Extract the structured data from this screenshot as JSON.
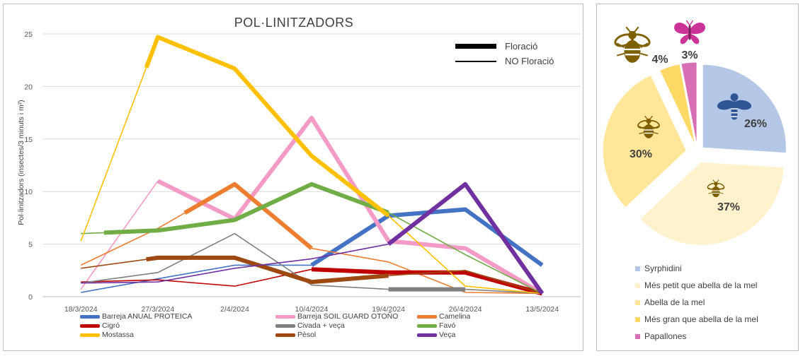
{
  "chart_data": [
    {
      "type": "line",
      "title": "POL·LINITZADORS",
      "xlabel": "",
      "ylabel": "Pol·linitzadors (insectes/3 minuts i m²)",
      "ylim": [
        0,
        25
      ],
      "yticks": [
        "0",
        "5",
        "10",
        "15",
        "20",
        "25"
      ],
      "categories": [
        "18/3/2024",
        "27/3/2024",
        "2/4/2024",
        "10/4/2024",
        "19/4/2024",
        "26/4/2024",
        "13/5/2024"
      ],
      "grid": true,
      "legend_position": "bottom",
      "style_legend": {
        "flowering": "Floració",
        "no_flowering": "NO Floració"
      },
      "series": [
        {
          "name": "Barreja ANUAL PROTEICA",
          "color": "#4472c4",
          "values": [
            0.4,
            1.7,
            3.0,
            3.0,
            7.7,
            8.3,
            3.0
          ],
          "flowering_from": 3
        },
        {
          "name": "Barreja SOIL GUARD OTOÑO",
          "color": "#f49ac6",
          "values": [
            0.7,
            11.0,
            7.4,
            17.0,
            5.3,
            4.6,
            0.3
          ],
          "flowering_from": 1
        },
        {
          "name": "Camelina",
          "color": "#ed7d31",
          "values": [
            3.0,
            6.5,
            10.7,
            4.6,
            3.3,
            0.4,
            0.3
          ],
          "flowering_from": 1.35,
          "flowering_to": 3
        },
        {
          "name": "Cigró",
          "color": "#c00000",
          "values": [
            1.4,
            1.6,
            1.0,
            2.6,
            2.3,
            2.3,
            0.3
          ],
          "flowering_from": 3
        },
        {
          "name": "Civada + veça",
          "color": "#808080",
          "values": [
            1.3,
            2.3,
            6.0,
            1.1,
            0.7,
            0.7,
            0.3
          ],
          "flowering_from": 4,
          "flowering_to": 5
        },
        {
          "name": "Favó",
          "color": "#70ad47",
          "values": [
            6.0,
            6.3,
            7.3,
            10.7,
            8.0,
            4.0,
            0.3
          ],
          "flowering_from": 0.3,
          "flowering_to": 4
        },
        {
          "name": "Mostassa",
          "color": "#ffc000",
          "values": [
            5.3,
            24.7,
            21.7,
            13.4,
            7.7,
            1.0,
            0.3
          ],
          "flowering_from": 0.85,
          "flowering_to": 4
        },
        {
          "name": "Pèsol",
          "color": "#9c4a12",
          "values": [
            2.7,
            3.7,
            3.7,
            1.4,
            2.0,
            2.5,
            0.3
          ],
          "flowering_from": 0.85,
          "flowering_to": 4
        },
        {
          "name": "Veça",
          "color": "#7030a0",
          "values": [
            1.3,
            1.4,
            2.7,
            3.6,
            5.0,
            10.7,
            0.3
          ],
          "flowering_from": 4
        }
      ]
    },
    {
      "type": "pie",
      "legend_position": "bottom",
      "slices": [
        {
          "name": "Syrphidini",
          "value": 26,
          "label": "26%",
          "color": "#b4c7e7",
          "icon": "hoverfly-icon"
        },
        {
          "name": "Més petit que abella de la mel",
          "value": 37,
          "label": "37%",
          "color": "#fff2cc",
          "icon": "small-bee-icon"
        },
        {
          "name": "Abella de la mel",
          "value": 30,
          "label": "30%",
          "color": "#ffe699",
          "icon": "honeybee-icon"
        },
        {
          "name": "Més gran que abella de la mel",
          "value": 4,
          "label": "4%",
          "color": "#ffd966",
          "icon": "bumblebee-icon"
        },
        {
          "name": "Papallones",
          "value": 3,
          "label": "3%",
          "color": "#d86eb4",
          "icon": "butterfly-icon"
        }
      ]
    }
  ]
}
